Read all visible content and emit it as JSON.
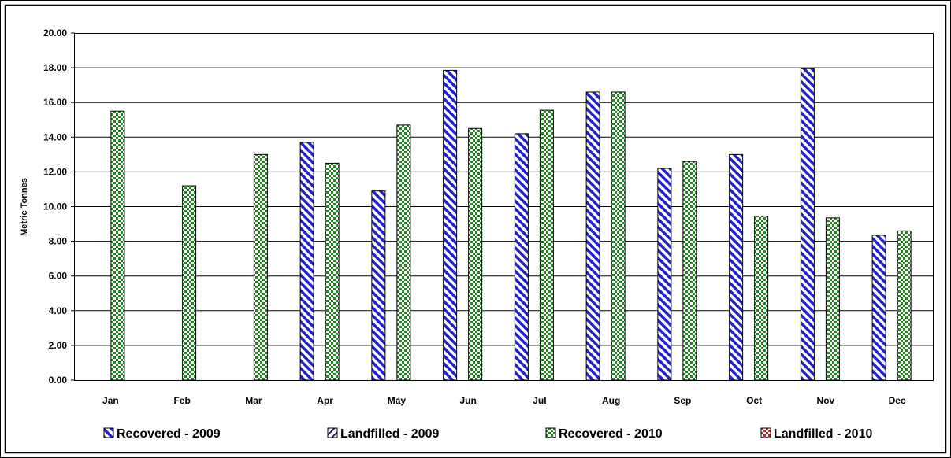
{
  "chart_data": {
    "type": "bar",
    "title": "",
    "xlabel": "",
    "ylabel": "Metric Tonnes",
    "ylim": [
      0,
      20
    ],
    "yticks": [
      "0.00",
      "2.00",
      "4.00",
      "6.00",
      "8.00",
      "10.00",
      "12.00",
      "14.00",
      "16.00",
      "18.00",
      "20.00"
    ],
    "grid": true,
    "legend_position": "bottom",
    "categories": [
      "Jan",
      "Feb",
      "Mar",
      "Apr",
      "May",
      "Jun",
      "Jul",
      "Aug",
      "Sep",
      "Oct",
      "Nov",
      "Dec"
    ],
    "series": [
      {
        "name": "Recovered - 2009",
        "color": "#2222cc",
        "pattern": "diagonal-stripes",
        "values": [
          0,
          0,
          0,
          13.7,
          10.9,
          17.85,
          14.2,
          16.6,
          12.2,
          13.0,
          17.95,
          8.35
        ]
      },
      {
        "name": "Landfilled - 2009",
        "color": "#222266",
        "pattern": "reverse-diagonal-stripes",
        "values": [
          0,
          0,
          0,
          0,
          0,
          0,
          0,
          0,
          0,
          0,
          0,
          0
        ]
      },
      {
        "name": "Recovered - 2010",
        "color": "#1e8a1e",
        "pattern": "checkerboard",
        "values": [
          15.5,
          11.2,
          13.0,
          12.5,
          14.7,
          14.5,
          15.55,
          16.6,
          12.6,
          9.45,
          9.35,
          8.6
        ]
      },
      {
        "name": "Landfilled - 2010",
        "color": "#cc2222",
        "pattern": "checkerboard-red",
        "values": [
          0,
          0,
          0,
          0,
          0,
          0,
          0,
          0,
          0,
          0,
          0,
          0
        ]
      }
    ]
  }
}
